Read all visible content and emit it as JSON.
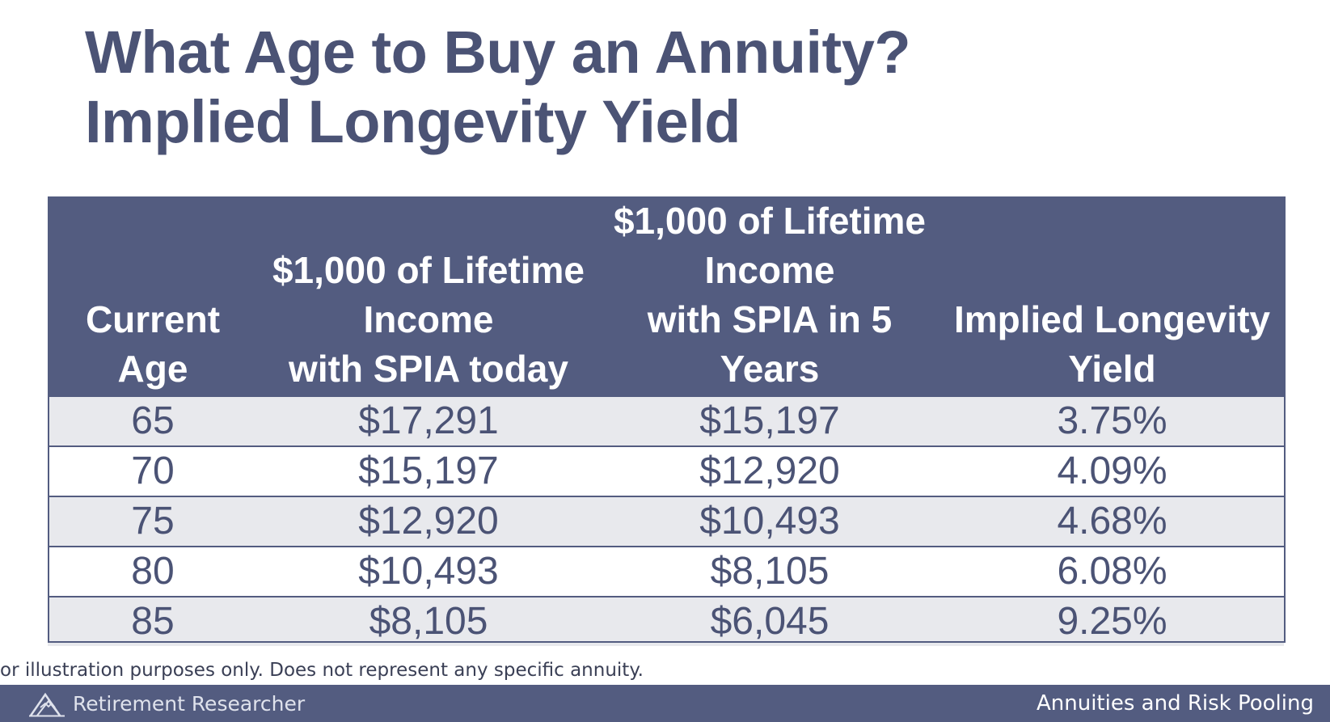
{
  "slide": {
    "title_line1": "What Age to Buy an Annuity?",
    "title_line2": "Implied Longevity Yield"
  },
  "table": {
    "headers": [
      "Current\nAge",
      "$1,000 of Lifetime\nIncome\nwith SPIA today",
      "$1,000 of Lifetime\nIncome\nwith SPIA in 5\nYears",
      "Implied Longevity\nYield"
    ],
    "rows": [
      [
        "65",
        "$17,291",
        "$15,197",
        "3.75%"
      ],
      [
        "70",
        "$15,197",
        "$12,920",
        "4.09%"
      ],
      [
        "75",
        "$12,920",
        "$10,493",
        "4.68%"
      ],
      [
        "80",
        "$10,493",
        "$8,105",
        "6.08%"
      ],
      [
        "85",
        "$8,105",
        "$6,045",
        "9.25%"
      ]
    ]
  },
  "disclaimer": "or illustration purposes only. Does not represent any specific annuity.",
  "footer": {
    "logo_icon": "mountain-logo-icon",
    "brand": "Retirement Researcher",
    "section": "Annuities and Risk Pooling"
  },
  "colors": {
    "header_bg": "#535c80",
    "title_text": "#4b5375",
    "band_row": "#e8e9ed",
    "footer_bg": "#535c80"
  }
}
